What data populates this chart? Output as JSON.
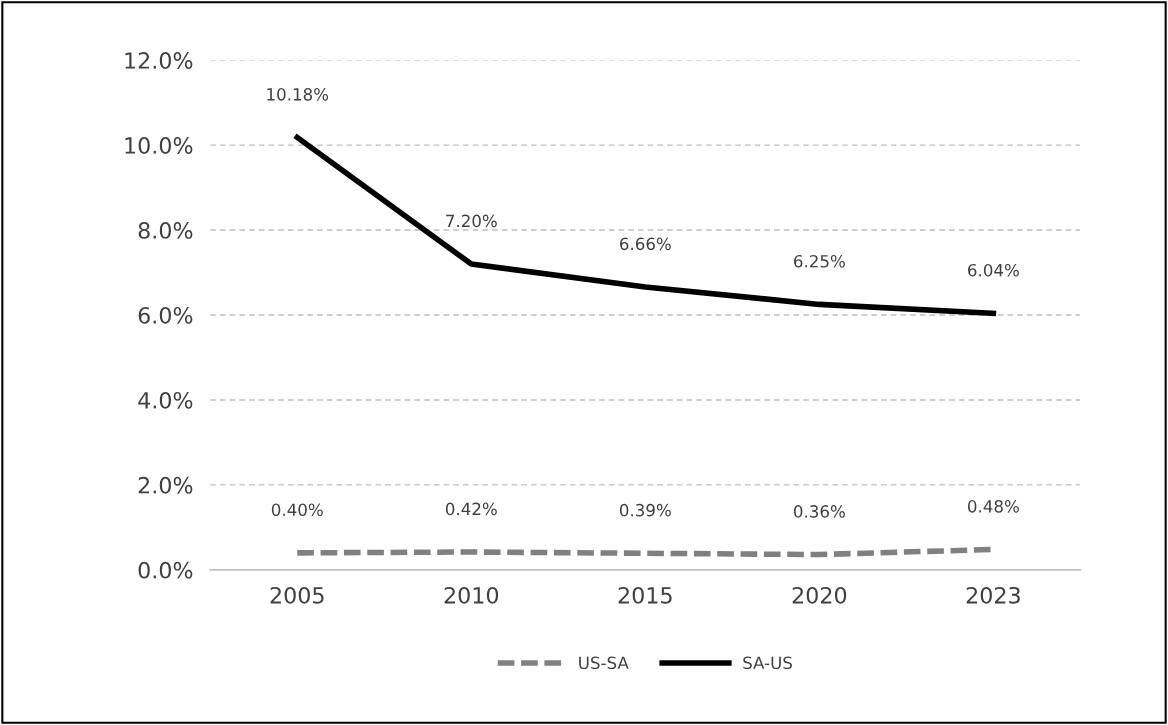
{
  "chart_data": {
    "type": "line",
    "categories": [
      "2005",
      "2010",
      "2015",
      "2020",
      "2023"
    ],
    "series": [
      {
        "name": "US-SA",
        "color": "#808080",
        "line_style": "dashed",
        "values": [
          0.4,
          0.42,
          0.39,
          0.36,
          0.48
        ],
        "value_labels": [
          "0.40%",
          "0.42%",
          "0.39%",
          "0.36%",
          "0.48%"
        ]
      },
      {
        "name": "SA-US",
        "color": "#000000",
        "line_style": "solid",
        "values": [
          10.18,
          7.2,
          6.66,
          6.25,
          6.04
        ],
        "value_labels": [
          "10.18%",
          "7.20%",
          "6.66%",
          "6.25%",
          "6.04%"
        ]
      }
    ],
    "ylim": [
      0,
      12
    ],
    "yticks": [
      {
        "value": 0,
        "label": "0.0%"
      },
      {
        "value": 2,
        "label": "2.0%"
      },
      {
        "value": 4,
        "label": "4.0%"
      },
      {
        "value": 6,
        "label": "6.0%"
      },
      {
        "value": 8,
        "label": "8.0%"
      },
      {
        "value": 10,
        "label": "10.0%"
      },
      {
        "value": 12,
        "label": "12.0%"
      }
    ],
    "grid": "y",
    "legend": "bottom",
    "marker": "none"
  }
}
